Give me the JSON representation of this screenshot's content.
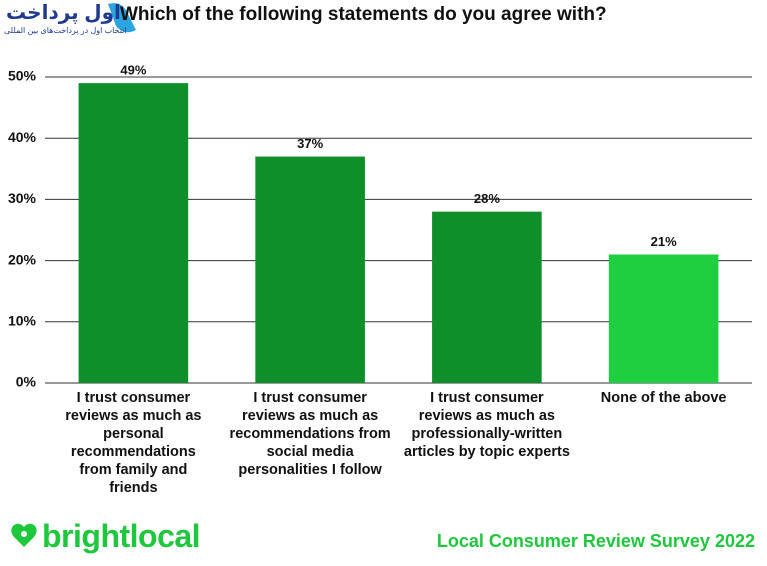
{
  "chart_data": {
    "type": "bar",
    "title": "Which of the following statements do you agree with?",
    "categories": [
      "I trust consumer reviews as much as personal recommendations from family and friends",
      "I trust consumer reviews as much as recommendations from social media personalities I follow",
      "I trust consumer reviews as much as professionally-written articles by topic experts",
      "None of the above"
    ],
    "values": [
      49,
      37,
      28,
      21
    ],
    "value_labels": [
      "49%",
      "37%",
      "28%",
      "21%"
    ],
    "colors": [
      "#0f8f2a",
      "#0f8f2a",
      "#0f8f2a",
      "#1ecf3f"
    ],
    "ylim": [
      0,
      50
    ],
    "yticks": [
      {
        "value": 0,
        "label": "0%"
      },
      {
        "value": 10,
        "label": "10%"
      },
      {
        "value": 20,
        "label": "20%"
      },
      {
        "value": 30,
        "label": "30%"
      },
      {
        "value": 40,
        "label": "40%"
      },
      {
        "value": 50,
        "label": "50%"
      }
    ],
    "grid": true,
    "brand": "brightlocal",
    "footer": "Local Consumer Review Survey 2022",
    "watermark": {
      "title": "اول پرداخت",
      "subtitle": "انتخاب اول در پرداخت‌های بین المللی"
    }
  }
}
